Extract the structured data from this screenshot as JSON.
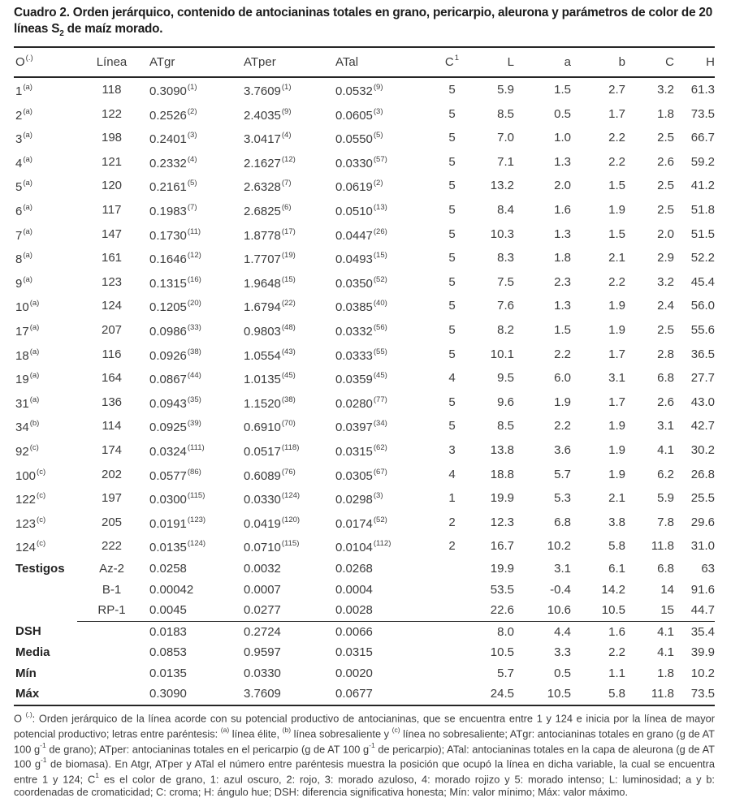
{
  "title": {
    "line1": "Cuadro 2. Orden jerárquico, contenido de antocianinas totales en grano, pericarpio, aleurona y parámetros de color de 20",
    "line2_part1": "líneas S",
    "line2_sub": "2",
    "line2_part2": " de maíz morado."
  },
  "colors": {
    "background": "#ffffff",
    "text": "#3c3c3c",
    "title_text": "#1c1c1c",
    "rule": "#262626"
  },
  "table": {
    "header": {
      "o": "O",
      "o_sup": "(.)",
      "linea": "Línea",
      "atgr": "ATgr",
      "atper": "ATper",
      "atal": "ATal",
      "c": "C",
      "c_sup": "1",
      "l": "L",
      "a": "a",
      "b": "b",
      "cr": "C",
      "h": "H"
    },
    "rows": [
      {
        "o": "1",
        "o_sup": "(a)",
        "linea": "118",
        "atgr": "0.3090",
        "atgr_sup": "(1)",
        "atper": "3.7609",
        "atper_sup": "(1)",
        "atal": "0.0532",
        "atal_sup": "(9)",
        "c": "5",
        "l": "5.9",
        "a": "1.5",
        "b": "2.7",
        "cr": "3.2",
        "h": "61.3"
      },
      {
        "o": "2",
        "o_sup": "(a)",
        "linea": "122",
        "atgr": "0.2526",
        "atgr_sup": "(2)",
        "atper": "2.4035",
        "atper_sup": "(9)",
        "atal": "0.0605",
        "atal_sup": "(3)",
        "c": "5",
        "l": "8.5",
        "a": "0.5",
        "b": "1.7",
        "cr": "1.8",
        "h": "73.5"
      },
      {
        "o": "3",
        "o_sup": "(a)",
        "linea": "198",
        "atgr": "0.2401",
        "atgr_sup": "(3)",
        "atper": "3.0417",
        "atper_sup": "(4)",
        "atal": "0.0550",
        "atal_sup": "(5)",
        "c": "5",
        "l": "7.0",
        "a": "1.0",
        "b": "2.2",
        "cr": "2.5",
        "h": "66.7"
      },
      {
        "o": "4",
        "o_sup": "(a)",
        "linea": "121",
        "atgr": "0.2332",
        "atgr_sup": "(4)",
        "atper": "2.1627",
        "atper_sup": "(12)",
        "atal": "0.0330",
        "atal_sup": "(57)",
        "c": "5",
        "l": "7.1",
        "a": "1.3",
        "b": "2.2",
        "cr": "2.6",
        "h": "59.2"
      },
      {
        "o": "5",
        "o_sup": "(a)",
        "linea": "120",
        "atgr": "0.2161",
        "atgr_sup": "(5)",
        "atper": "2.6328",
        "atper_sup": "(7)",
        "atal": "0.0619",
        "atal_sup": "(2)",
        "c": "5",
        "l": "13.2",
        "a": "2.0",
        "b": "1.5",
        "cr": "2.5",
        "h": "41.2"
      },
      {
        "o": "6",
        "o_sup": "(a)",
        "linea": "117",
        "atgr": "0.1983",
        "atgr_sup": "(7)",
        "atper": "2.6825",
        "atper_sup": "(6)",
        "atal": "0.0510",
        "atal_sup": "(13)",
        "c": "5",
        "l": "8.4",
        "a": "1.6",
        "b": "1.9",
        "cr": "2.5",
        "h": "51.8"
      },
      {
        "o": "7",
        "o_sup": "(a)",
        "linea": "147",
        "atgr": "0.1730",
        "atgr_sup": "(11)",
        "atper": "1.8778",
        "atper_sup": "(17)",
        "atal": "0.0447",
        "atal_sup": "(26)",
        "c": "5",
        "l": "10.3",
        "a": "1.3",
        "b": "1.5",
        "cr": "2.0",
        "h": "51.5"
      },
      {
        "o": "8",
        "o_sup": "(a)",
        "linea": "161",
        "atgr": "0.1646",
        "atgr_sup": "(12)",
        "atper": "1.7707",
        "atper_sup": "(19)",
        "atal": "0.0493",
        "atal_sup": "(15)",
        "c": "5",
        "l": "8.3",
        "a": "1.8",
        "b": "2.1",
        "cr": "2.9",
        "h": "52.2"
      },
      {
        "o": "9",
        "o_sup": "(a)",
        "linea": "123",
        "atgr": "0.1315",
        "atgr_sup": "(16)",
        "atper": "1.9648",
        "atper_sup": "(15)",
        "atal": "0.0350",
        "atal_sup": "(52)",
        "c": "5",
        "l": "7.5",
        "a": "2.3",
        "b": "2.2",
        "cr": "3.2",
        "h": "45.4"
      },
      {
        "o": "10",
        "o_sup": "(a)",
        "linea": "124",
        "atgr": "0.1205",
        "atgr_sup": "(20)",
        "atper": "1.6794",
        "atper_sup": "(22)",
        "atal": "0.0385",
        "atal_sup": "(40)",
        "c": "5",
        "l": "7.6",
        "a": "1.3",
        "b": "1.9",
        "cr": "2.4",
        "h": "56.0"
      },
      {
        "o": "17",
        "o_sup": "(a)",
        "linea": "207",
        "atgr": "0.0986",
        "atgr_sup": "(33)",
        "atper": "0.9803",
        "atper_sup": "(48)",
        "atal": "0.0332",
        "atal_sup": "(56)",
        "c": "5",
        "l": "8.2",
        "a": "1.5",
        "b": "1.9",
        "cr": "2.5",
        "h": "55.6"
      },
      {
        "o": "18",
        "o_sup": "(a)",
        "linea": "116",
        "atgr": "0.0926",
        "atgr_sup": "(38)",
        "atper": "1.0554",
        "atper_sup": "(43)",
        "atal": "0.0333",
        "atal_sup": "(55)",
        "c": "5",
        "l": "10.1",
        "a": "2.2",
        "b": "1.7",
        "cr": "2.8",
        "h": "36.5"
      },
      {
        "o": "19",
        "o_sup": "(a)",
        "linea": "164",
        "atgr": "0.0867",
        "atgr_sup": "(44)",
        "atper": "1.0135",
        "atper_sup": "(45)",
        "atal": "0.0359",
        "atal_sup": "(45)",
        "c": "4",
        "l": "9.5",
        "a": "6.0",
        "b": "3.1",
        "cr": "6.8",
        "h": "27.7"
      },
      {
        "o": "31",
        "o_sup": "(a)",
        "linea": "136",
        "atgr": "0.0943",
        "atgr_sup": "(35)",
        "atper": "1.1520",
        "atper_sup": "(38)",
        "atal": "0.0280",
        "atal_sup": "(77)",
        "c": "5",
        "l": "9.6",
        "a": "1.9",
        "b": "1.7",
        "cr": "2.6",
        "h": "43.0"
      },
      {
        "o": "34",
        "o_sup": "(b)",
        "linea": "114",
        "atgr": "0.0925",
        "atgr_sup": "(39)",
        "atper": "0.6910",
        "atper_sup": "(70)",
        "atal": "0.0397",
        "atal_sup": "(34)",
        "c": "5",
        "l": "8.5",
        "a": "2.2",
        "b": "1.9",
        "cr": "3.1",
        "h": "42.7"
      },
      {
        "o": "92",
        "o_sup": "(c)",
        "linea": "174",
        "atgr": "0.0324",
        "atgr_sup": "(111)",
        "atper": "0.0517",
        "atper_sup": "(118)",
        "atal": "0.0315",
        "atal_sup": "(62)",
        "c": "3",
        "l": "13.8",
        "a": "3.6",
        "b": "1.9",
        "cr": "4.1",
        "h": "30.2"
      },
      {
        "o": "100",
        "o_sup": "(c)",
        "linea": "202",
        "atgr": "0.0577",
        "atgr_sup": "(86)",
        "atper": "0.6089",
        "atper_sup": "(76)",
        "atal": "0.0305",
        "atal_sup": "(67)",
        "c": "4",
        "l": "18.8",
        "a": "5.7",
        "b": "1.9",
        "cr": "6.2",
        "h": "26.8"
      },
      {
        "o": "122",
        "o_sup": "(c)",
        "linea": "197",
        "atgr": "0.0300",
        "atgr_sup": "(115)",
        "atper": "0.0330",
        "atper_sup": "(124)",
        "atal": "0.0298",
        "atal_sup": "(3)",
        "c": "1",
        "l": "19.9",
        "a": "5.3",
        "b": "2.1",
        "cr": "5.9",
        "h": "25.5"
      },
      {
        "o": "123",
        "o_sup": "(c)",
        "linea": "205",
        "atgr": "0.0191",
        "atgr_sup": "(123)",
        "atper": "0.0419",
        "atper_sup": "(120)",
        "atal": "0.0174",
        "atal_sup": "(52)",
        "c": "2",
        "l": "12.3",
        "a": "6.8",
        "b": "3.8",
        "cr": "7.8",
        "h": "29.6"
      },
      {
        "o": "124",
        "o_sup": "(c)",
        "linea": "222",
        "atgr": "0.0135",
        "atgr_sup": "(124)",
        "atper": "0.0710",
        "atper_sup": "(115)",
        "atal": "0.0104",
        "atal_sup": "(112)",
        "c": "2",
        "l": "16.7",
        "a": "10.2",
        "b": "5.8",
        "cr": "11.8",
        "h": "31.0"
      },
      {
        "o": "Testigos",
        "bold": true,
        "linea": "Az-2",
        "atgr": "0.0258",
        "atper": "0.0032",
        "atal": "0.0268",
        "c": "",
        "l": "19.9",
        "a": "3.1",
        "b": "6.1",
        "cr": "6.8",
        "h": "63"
      },
      {
        "o": "",
        "linea": "B-1",
        "atgr": "0.00042",
        "atper": "0.0007",
        "atal": "0.0004",
        "c": "",
        "l": "53.5",
        "a": "-0.4",
        "b": "14.2",
        "cr": "14",
        "h": "91.6"
      },
      {
        "o": "",
        "sep": true,
        "linea": "RP-1",
        "atgr": "0.0045",
        "atper": "0.0277",
        "atal": "0.0028",
        "c": "",
        "l": "22.6",
        "a": "10.6",
        "b": "10.5",
        "cr": "15",
        "h": "44.7"
      },
      {
        "o": "DSH",
        "bold": true,
        "linea": "",
        "atgr": "0.0183",
        "atper": "0.2724",
        "atal": "0.0066",
        "c": "",
        "l": "8.0",
        "a": "4.4",
        "b": "1.6",
        "cr": "4.1",
        "h": "35.4"
      },
      {
        "o": "Media",
        "bold": true,
        "linea": "",
        "atgr": "0.0853",
        "atper": "0.9597",
        "atal": "0.0315",
        "c": "",
        "l": "10.5",
        "a": "3.3",
        "b": "2.2",
        "cr": "4.1",
        "h": "39.9"
      },
      {
        "o": "Mín",
        "bold": true,
        "linea": "",
        "atgr": "0.0135",
        "atper": "0.0330",
        "atal": "0.0020",
        "c": "",
        "l": "5.7",
        "a": "0.5",
        "b": "1.1",
        "cr": "1.8",
        "h": "10.2"
      },
      {
        "o": "Máx",
        "bold": true,
        "linea": "",
        "atgr": "0.3090",
        "atper": "3.7609",
        "atal": "0.0677",
        "c": "",
        "l": "24.5",
        "a": "10.5",
        "b": "5.8",
        "cr": "11.8",
        "h": "73.5"
      }
    ]
  },
  "footnote": {
    "segments": [
      {
        "t": "O "
      },
      {
        "s": "(.)"
      },
      {
        "t": ": Orden jerárquico de la línea acorde con su potencial productivo de antocianinas, que se encuentra entre 1 y 124 e inicia por la línea de mayor potencial productivo; letras entre paréntesis: "
      },
      {
        "s": "(a)"
      },
      {
        "t": " línea élite, "
      },
      {
        "s": "(b)"
      },
      {
        "t": " línea sobresaliente y "
      },
      {
        "s": "(c)"
      },
      {
        "t": " línea no sobresaliente; ATgr: antocianinas totales en grano (g de AT 100 g"
      },
      {
        "s": "-1"
      },
      {
        "t": " de grano); ATper: antocianinas totales en el pericarpio (g de AT 100 g"
      },
      {
        "s": "-1"
      },
      {
        "t": " de pericarpio); ATal: antocianinas totales en la capa de aleurona (g de AT 100 g"
      },
      {
        "s": "-1"
      },
      {
        "t": " de biomasa). En Atgr, ATper y ATal el número entre paréntesis muestra la posición que ocupó la línea en dicha variable, la cual se encuentra entre 1 y 124; C"
      },
      {
        "s": "1"
      },
      {
        "t": " es el color de grano, 1: azul oscuro, 2: rojo, 3: morado azuloso, 4: morado rojizo y 5: morado intenso; L: luminosidad; a y b: coordenadas de cromaticidad; C: croma; H: ángulo hue; DSH: diferencia significativa honesta; Mín: valor mínimo; Máx: valor máximo."
      }
    ]
  }
}
